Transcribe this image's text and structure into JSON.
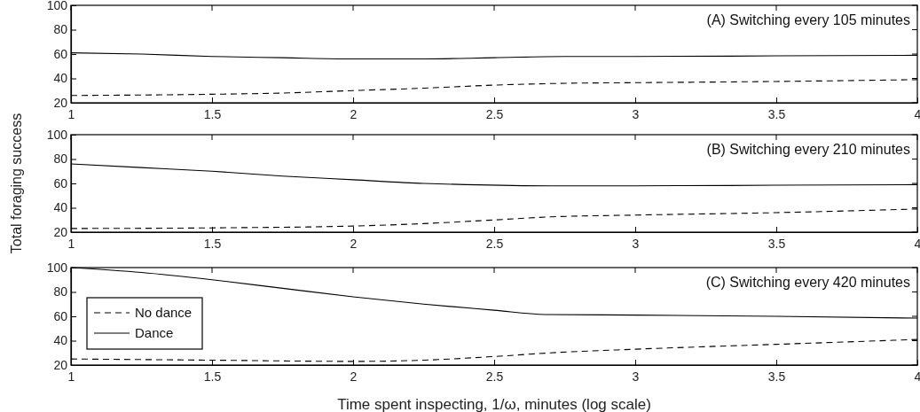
{
  "chart_data": [
    {
      "type": "line",
      "title": "(A) Switching every 105 minutes",
      "xlim": [
        1,
        4
      ],
      "xticks": [
        1,
        1.5,
        2,
        2.5,
        3,
        3.5,
        4
      ],
      "ylim": [
        20,
        100
      ],
      "yticks": [
        20,
        40,
        60,
        80,
        100
      ],
      "series": [
        {
          "color": "#000000",
          "line_style": "dashed",
          "x": [
            1,
            1.5,
            1.75,
            2,
            2.25,
            2.5,
            2.75,
            3,
            3.5,
            4
          ],
          "values": [
            26,
            27,
            28,
            30,
            32,
            34.5,
            36,
            36.5,
            37.5,
            39
          ]
        },
        {
          "color": "#000000",
          "line_style": "solid",
          "x": [
            1,
            1.25,
            1.5,
            1.75,
            2,
            2.25,
            2.5,
            2.75,
            3,
            3.5,
            4
          ],
          "values": [
            61,
            60,
            58,
            57,
            56,
            56,
            57,
            58,
            58,
            58.5,
            59
          ]
        }
      ]
    },
    {
      "type": "line",
      "title": "(B) Switching every 210 minutes",
      "ylabel": "Total foraging success",
      "xlim": [
        1,
        4
      ],
      "xticks": [
        1,
        1.5,
        2,
        2.5,
        3,
        3.5,
        4
      ],
      "ylim": [
        20,
        100
      ],
      "yticks": [
        20,
        40,
        60,
        80,
        100
      ],
      "series": [
        {
          "color": "#000000",
          "line_style": "dashed",
          "x": [
            1,
            1.5,
            2,
            2.25,
            2.5,
            2.7,
            3,
            3.5,
            4
          ],
          "values": [
            23,
            23.5,
            25,
            27,
            30,
            32.5,
            34,
            36,
            39
          ]
        },
        {
          "color": "#000000",
          "line_style": "solid",
          "x": [
            1,
            1.25,
            1.5,
            1.75,
            2,
            2.25,
            2.4,
            2.7,
            3,
            3.5,
            4
          ],
          "values": [
            76,
            73,
            70,
            66,
            63,
            60,
            59,
            58,
            58,
            58.5,
            59
          ]
        }
      ]
    },
    {
      "type": "line",
      "title": "(C) Switching every 420 minutes",
      "xlabel": "Time spent inspecting, 1/ω, minutes (log scale)",
      "xlim": [
        1,
        4
      ],
      "xticks": [
        1,
        1.5,
        2,
        2.5,
        3,
        3.5,
        4
      ],
      "ylim": [
        20,
        100
      ],
      "yticks": [
        20,
        40,
        60,
        80,
        100
      ],
      "legend": "bottom left",
      "series": [
        {
          "name": "No dance",
          "color": "#000000",
          "line_style": "dashed",
          "x": [
            1,
            1.5,
            2,
            2.25,
            2.5,
            2.7,
            3,
            3.5,
            4
          ],
          "values": [
            25,
            24,
            23,
            24,
            27,
            30,
            33,
            37,
            41
          ]
        },
        {
          "name": "Dance",
          "color": "#000000",
          "line_style": "solid",
          "x": [
            1,
            1.25,
            1.5,
            1.75,
            2,
            2.25,
            2.5,
            2.68,
            3,
            3.5,
            4
          ],
          "values": [
            100,
            96,
            90,
            83,
            76,
            70,
            65,
            61.5,
            61,
            60,
            58.5
          ]
        }
      ]
    }
  ]
}
